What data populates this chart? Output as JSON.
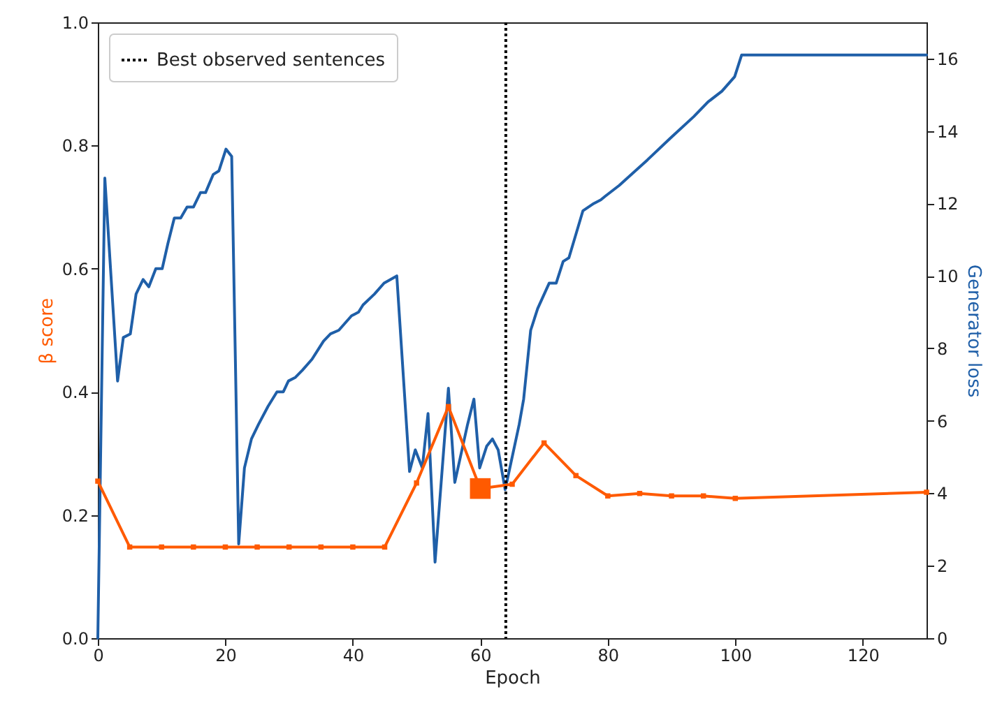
{
  "chart_data": {
    "type": "line",
    "xlabel": "Epoch",
    "ylabel": "β score",
    "y2label": "Generator loss",
    "xlim": [
      0,
      130
    ],
    "xticks": [
      0,
      20,
      40,
      60,
      80,
      100,
      120
    ],
    "ylim": [
      0,
      1.0
    ],
    "yticks": [
      {
        "value": 0,
        "label": "0.0"
      },
      {
        "value": 0.2,
        "label": "0.2"
      },
      {
        "value": 0.4,
        "label": "0.4"
      },
      {
        "value": 0.6,
        "label": "0.6"
      },
      {
        "value": 0.8,
        "label": "0.8"
      },
      {
        "value": 1.0,
        "label": "1.0"
      }
    ],
    "y2lim": [
      0,
      17
    ],
    "y2ticks": [
      0,
      2,
      4,
      6,
      8,
      10,
      12,
      14,
      16
    ],
    "grid": false,
    "legend": "top left",
    "ref_lines": [
      {
        "axis": "x",
        "value": 64,
        "label": "Best observed sentences",
        "color": "#000000",
        "line_style": "dotted"
      }
    ],
    "series": [
      {
        "color": "#ff5a00",
        "marker": "square",
        "x": [
          0,
          5,
          10,
          15,
          20,
          25,
          30,
          35,
          40,
          45,
          50,
          55,
          60,
          65,
          70,
          75,
          80,
          85,
          90,
          95,
          100,
          130
        ],
        "values": [
          0.255,
          0.148,
          0.148,
          0.148,
          0.148,
          0.148,
          0.148,
          0.148,
          0.148,
          0.148,
          0.252,
          0.376,
          0.243,
          0.25,
          0.317,
          0.264,
          0.231,
          0.235,
          0.231,
          0.231,
          0.227,
          0.237
        ]
      },
      {
        "type": "scatter",
        "color": "#ff5a00",
        "marker": "square",
        "x": [
          60
        ],
        "values": [
          0.243
        ]
      },
      {
        "color": "#1f5fa8",
        "marker": "none",
        "axis": "y2",
        "x": [
          0,
          1.1,
          3.1,
          4,
          5.1,
          6,
          7.1,
          8,
          9.1,
          10.1,
          11,
          12,
          13,
          14,
          15,
          16.1,
          16.9,
          18.1,
          19,
          20.1,
          21,
          22.1,
          23,
          24.1,
          25.2,
          26.7,
          28.1,
          29.1,
          29.9,
          31,
          32.1,
          33.6,
          35.4,
          36.5,
          37.8,
          39.8,
          40.9,
          41.6,
          43.4,
          44.9,
          46.9,
          48.9,
          49.8,
          50.9,
          51.8,
          52.9,
          55,
          56,
          58,
          59,
          59.9,
          61,
          61.9,
          62.8,
          63.9,
          66.1,
          66.8,
          67.9,
          69,
          70.8,
          71.9,
          73,
          73.9,
          76.1,
          77.8,
          78.9,
          79.6,
          81.8,
          86.2,
          89.8,
          93.5,
          95.7,
          97.9,
          99.9,
          101,
          130
        ],
        "values": [
          0,
          12.7,
          7.1,
          8.3,
          8.4,
          9.5,
          9.9,
          9.7,
          10.2,
          10.2,
          10.9,
          11.6,
          11.6,
          11.9,
          11.9,
          12.3,
          12.3,
          12.8,
          12.9,
          13.5,
          13.3,
          2.6,
          4.7,
          5.5,
          5.9,
          6.4,
          6.8,
          6.8,
          7.1,
          7.2,
          7.4,
          7.7,
          8.2,
          8.4,
          8.5,
          8.9,
          9.0,
          9.2,
          9.5,
          9.8,
          10.0,
          4.6,
          5.2,
          4.7,
          6.2,
          2.1,
          6.9,
          4.3,
          5.9,
          6.6,
          4.7,
          5.3,
          5.5,
          5.2,
          4.1,
          5.9,
          6.6,
          8.5,
          9.1,
          9.8,
          9.8,
          10.4,
          10.5,
          11.8,
          12.0,
          12.1,
          12.2,
          12.5,
          13.2,
          13.8,
          14.4,
          14.8,
          15.1,
          15.5,
          16.1,
          16.1
        ]
      }
    ]
  }
}
